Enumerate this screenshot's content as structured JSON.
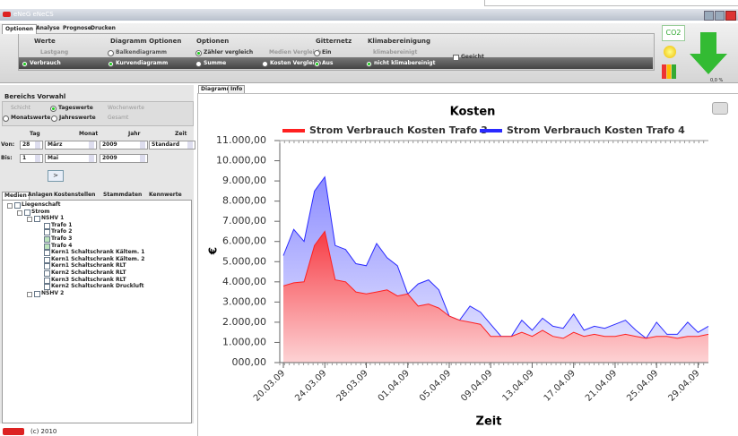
{
  "window": {
    "title": "eNeG eNeCS",
    "footer": "(c) 2010"
  },
  "ribbon": {
    "tabs": [
      "Optionen",
      "Analyse",
      "Prognose",
      "Drucken"
    ],
    "groups": [
      {
        "title": "Werte",
        "items": [
          "Lastgang",
          "Verbrauch"
        ]
      },
      {
        "title": "Diagramm Optionen",
        "items": [
          "Balkendiagramm",
          "Kurvendiagramm"
        ]
      },
      {
        "title": "Optionen",
        "items": [
          "Zähler vergleich",
          "Medien Vergleich",
          "Summe",
          "Kosten Vergleich"
        ]
      },
      {
        "title": "Gitternetz",
        "items": [
          "Ein",
          "Aus"
        ]
      },
      {
        "title": "Klimabereinigung",
        "items": [
          "klimabereinigt",
          "nicht klimabereinigt"
        ]
      }
    ],
    "checkbox": "Geeicht",
    "co2": "CO2",
    "percent": "0,0 %"
  },
  "left": {
    "range_title": "Bereichs Vorwahl",
    "range_options": [
      "Schicht",
      "Tageswerte",
      "Wochenwerte",
      "Monatswerte",
      "Jahreswerte",
      "Gesamt"
    ],
    "date_headers": [
      "Tag",
      "Monat",
      "Jahr",
      "Zeit"
    ],
    "from_label": "Von:",
    "from": [
      "28",
      "März",
      "2009",
      "Standard"
    ],
    "to_label": "Bis:",
    "to": [
      "1",
      "Mai",
      "2009"
    ],
    "button": ">",
    "tabs": [
      "Medien",
      "Anlagen",
      "Kostenstellen",
      "Stammdaten",
      "Kennwerte"
    ],
    "tree": [
      "Liegenschaft",
      "Strom",
      "NSHV 1",
      "Trafo 1",
      "Trafo 2",
      "Trafo 3",
      "Trafo 4",
      "Kern1 Schaltschrank Kältem. 1",
      "Kern1 Schaltschrank Kältem. 2",
      "Kern1 Schaltschrank RLT",
      "Kern2 Schaltschrank RLT",
      "Kern3 Schaltschrank RLT",
      "Kern2 Schaltschrank Druckluft",
      "NSHV 2"
    ]
  },
  "chart_tabs": [
    "Diagramm",
    "Info"
  ],
  "chart_data": {
    "type": "area",
    "title": "Kosten",
    "xlabel": "Zeit",
    "ylabel": "€",
    "legend": "top",
    "grid": false,
    "categories": [
      "20.03.09",
      null,
      null,
      null,
      "24.03.09",
      null,
      null,
      null,
      "28.03.09",
      null,
      null,
      null,
      "01.04.09",
      null,
      null,
      null,
      "05.04.09",
      null,
      null,
      null,
      "09.04.09",
      null,
      null,
      null,
      "13.04.09",
      null,
      null,
      null,
      "17.04.09",
      null,
      null,
      null,
      "21.04.09",
      null,
      null,
      null,
      "25.04.09",
      null,
      null,
      null,
      "29.04.09",
      null
    ],
    "series": [
      {
        "name": "Strom Verbrauch Kosten Trafo 3",
        "color": "#ff2020",
        "values": [
          3800,
          3950,
          4000,
          5800,
          6500,
          4100,
          4000,
          3500,
          3400,
          3500,
          3600,
          3300,
          3400,
          2800,
          2900,
          2700,
          2300,
          2100,
          2000,
          1900,
          1300,
          1300,
          1300,
          1500,
          1300,
          1600,
          1300,
          1200,
          1500,
          1300,
          1400,
          1300,
          1300,
          1400,
          1300,
          1200,
          1300,
          1300,
          1200,
          1300,
          1300,
          1400
        ]
      },
      {
        "name": "Strom Verbrauch Kosten Trafo 4",
        "color": "#2a2aff",
        "values": [
          5300,
          6600,
          6000,
          8500,
          9200,
          5800,
          5600,
          4900,
          4800,
          5900,
          5200,
          4800,
          3400,
          3900,
          4100,
          3600,
          2300,
          2100,
          2800,
          2500,
          1900,
          1300,
          1300,
          2100,
          1600,
          2200,
          1800,
          1700,
          2400,
          1600,
          1800,
          1700,
          1900,
          2100,
          1600,
          1200,
          2000,
          1400,
          1400,
          2000,
          1500,
          1800
        ]
      }
    ],
    "ylim": [
      0,
      11000
    ],
    "yticks": [
      {
        "value": 0,
        "label": "000,00"
      },
      {
        "value": 1000,
        "label": "1.000,00"
      },
      {
        "value": 2000,
        "label": "2.000,00"
      },
      {
        "value": 3000,
        "label": "3.000,00"
      },
      {
        "value": 4000,
        "label": "4.000,00"
      },
      {
        "value": 5000,
        "label": "5.000,00"
      },
      {
        "value": 6000,
        "label": "6.000,00"
      },
      {
        "value": 7000,
        "label": "7.000,00"
      },
      {
        "value": 8000,
        "label": "8.000,00"
      },
      {
        "value": 9000,
        "label": "9.000,00"
      },
      {
        "value": 10000,
        "label": "10.000,00"
      },
      {
        "value": 11000,
        "label": "11.000,00"
      }
    ]
  }
}
